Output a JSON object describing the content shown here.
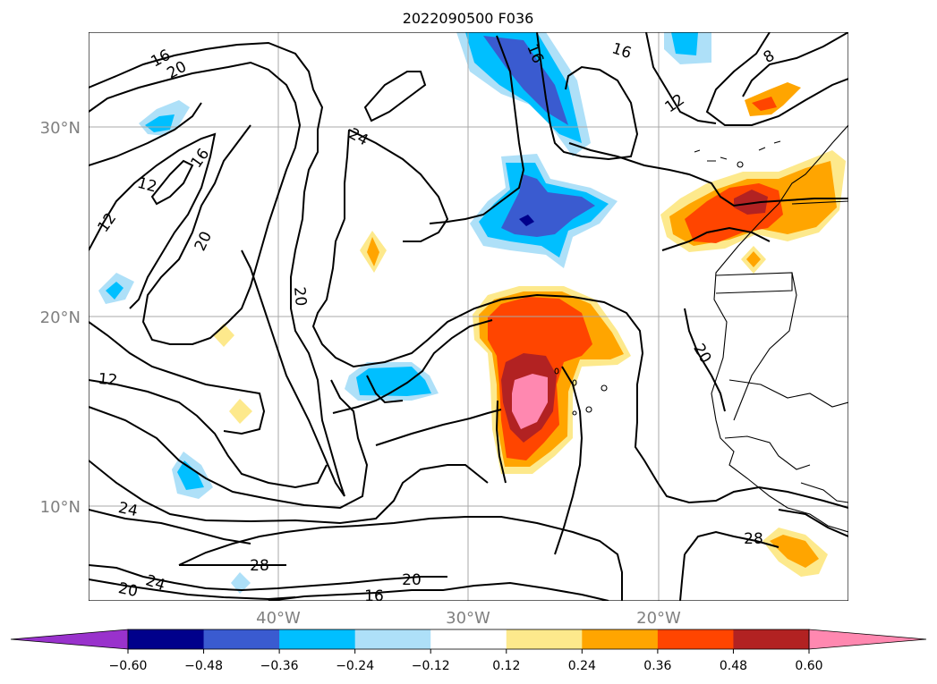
{
  "title": "2022090500 F036",
  "lat_labels": [
    {
      "lat": 30,
      "text": "30°N"
    },
    {
      "lat": 20,
      "text": "20°N"
    },
    {
      "lat": 10,
      "text": "10°N"
    }
  ],
  "lon_labels": [
    {
      "lon": -40,
      "text": "40°W"
    },
    {
      "lon": -30,
      "text": "30°W"
    },
    {
      "lon": -20,
      "text": "20°W"
    }
  ],
  "extent": {
    "lon_min": -50,
    "lon_max": -10,
    "lat_min": 5,
    "lat_max": 35
  },
  "contour_labels": [
    "16",
    "20",
    "16",
    "12",
    "16",
    "8",
    "12",
    "24",
    "16",
    "12",
    "12",
    "20",
    "20",
    "20",
    "12",
    "24",
    "28",
    "28",
    "24",
    "20",
    "20",
    "16"
  ],
  "colorbar": {
    "tick_labels": [
      "−0.60",
      "−0.48",
      "−0.36",
      "−0.24",
      "−0.12",
      "0.12",
      "0.24",
      "0.36",
      "0.48",
      "0.60"
    ],
    "colors": [
      "#9932cc",
      "#00008b",
      "#3a5bd0",
      "#00bfff",
      "#aee0f8",
      "#ffffff",
      "#fde98c",
      "#ffa500",
      "#ff4500",
      "#b22222",
      "#ff88b0"
    ]
  },
  "colors": {
    "tick_text": "#808080",
    "grid": "#a9a9a9",
    "contour": "#000000"
  }
}
